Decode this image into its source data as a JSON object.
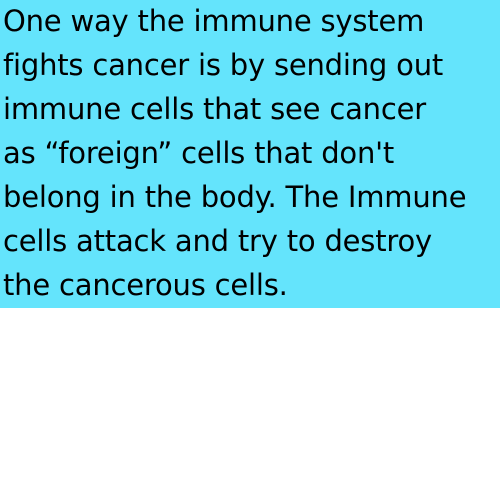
{
  "card": {
    "background_color": "#64e4fc",
    "lines": [
      "One way the immune system",
      "fights cancer is by sending out",
      "immune cells that see cancer",
      "as “foreign” cells that don't",
      "belong in the body. The Immune",
      "cells attack and try to destroy",
      "the cancerous cells."
    ]
  }
}
